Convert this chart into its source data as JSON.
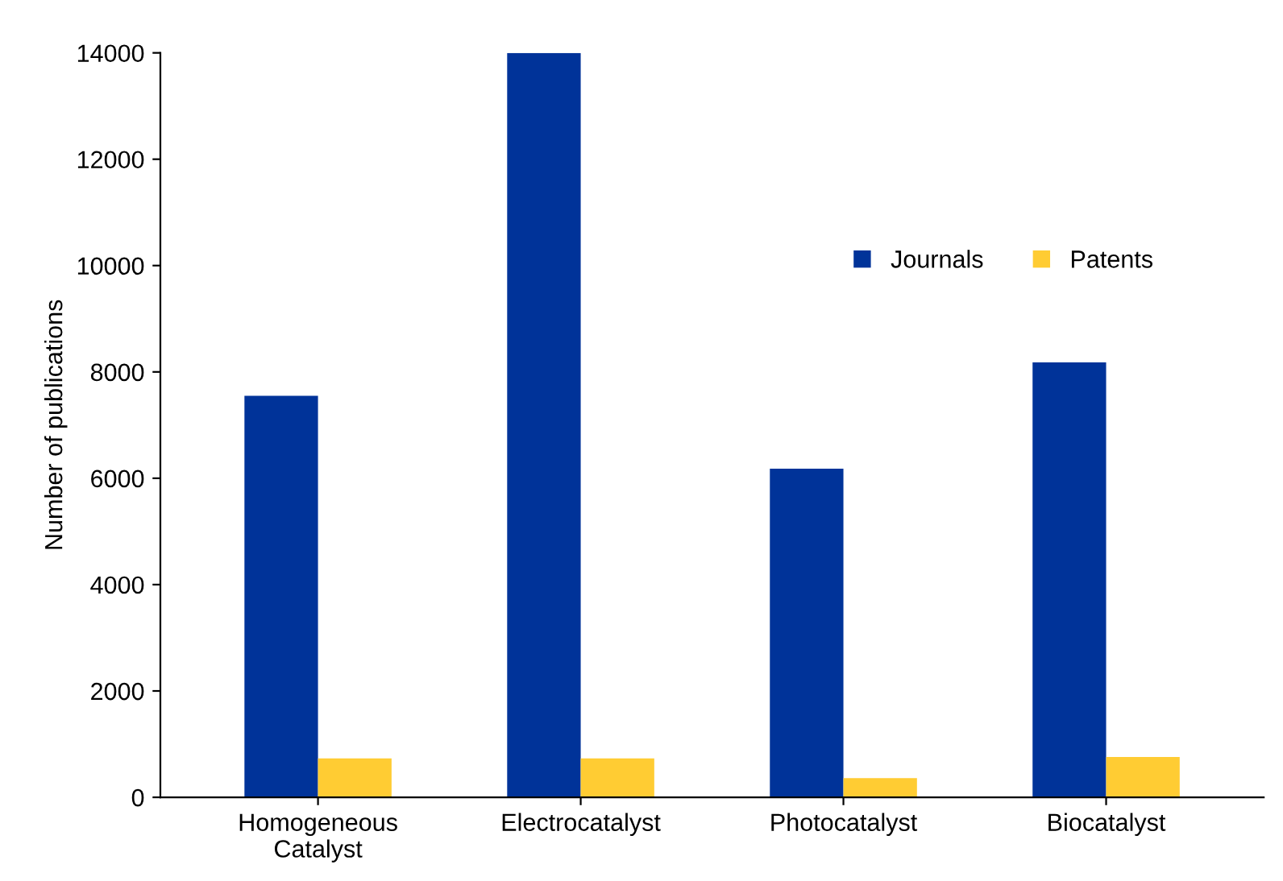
{
  "chart_data": {
    "type": "bar",
    "ylabel": "Number of publications",
    "categories": [
      "Homogeneous\nCatalyst",
      "Electrocatalyst",
      "Photocatalyst",
      "Biocatalyst"
    ],
    "series": [
      {
        "name": "Journals",
        "color": "#003399",
        "values": [
          7550,
          14000,
          6180,
          8180
        ]
      },
      {
        "name": "Patents",
        "color": "#ffcc33",
        "values": [
          730,
          730,
          360,
          760
        ]
      }
    ],
    "ylim": [
      0,
      14000
    ],
    "yticks": [
      0,
      2000,
      4000,
      6000,
      8000,
      10000,
      12000,
      14000
    ],
    "grid": false,
    "legend": "right"
  }
}
